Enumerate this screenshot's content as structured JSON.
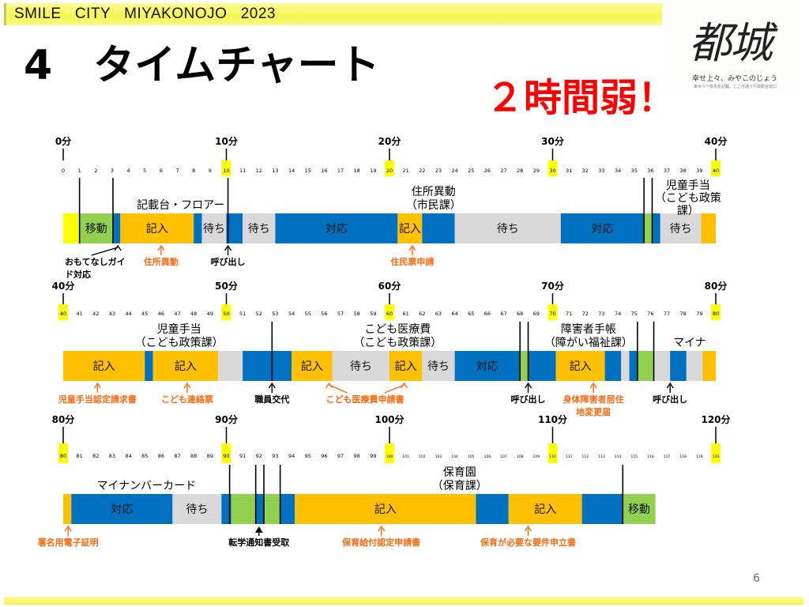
{
  "header": {
    "band_text": "SMILE   CITY   MIYAKONOJO   2023"
  },
  "title": "4　タイムチャート",
  "headline": "２時間弱！",
  "logo": {
    "kanji": "都城",
    "slogan": "幸せ上々、みやこのじょう",
    "sub": "幸せへ一歩先を記載。こころ通う行政総合窓口"
  },
  "page_number": "6",
  "colors": {
    "move": "#92d050",
    "write": "#ffc000",
    "wait": "#d9d9d9",
    "serve": "#0070c0",
    "guide": "#ffff00",
    "annotation_orange": "#ff6a13",
    "headline_red": "#ff0000",
    "tick_highlight": "#ffff00"
  },
  "chart_data": {
    "type": "timeline",
    "unit": "分",
    "rows": [
      {
        "range": [
          0,
          40
        ],
        "majors": [
          {
            "m": 0,
            "label": "0分"
          },
          {
            "m": 10,
            "label": "10分"
          },
          {
            "m": 20,
            "label": "20分"
          },
          {
            "m": 30,
            "label": "30分"
          },
          {
            "m": 40,
            "label": "40分"
          }
        ],
        "segments": [
          [
            0,
            1,
            "guide",
            ""
          ],
          [
            1,
            3.05,
            "move",
            "移動"
          ],
          [
            3.05,
            3.5,
            "serve",
            ""
          ],
          [
            3.5,
            8,
            "write",
            "記入"
          ],
          [
            8,
            8.5,
            "serve",
            ""
          ],
          [
            8.5,
            10,
            "wait",
            "待ち"
          ],
          [
            10,
            11,
            "serve",
            ""
          ],
          [
            11,
            13,
            "wait",
            "待ち"
          ],
          [
            13,
            20.5,
            "serve",
            "対応"
          ],
          [
            20.5,
            22,
            "write",
            "記入"
          ],
          [
            22,
            24,
            "serve",
            ""
          ],
          [
            24,
            30.5,
            "wait",
            "待ち"
          ],
          [
            30.5,
            35.6,
            "serve",
            "対応"
          ],
          [
            35.6,
            36.1,
            "move",
            ""
          ],
          [
            36.1,
            36.6,
            "serve",
            ""
          ],
          [
            36.6,
            39.1,
            "wait",
            "待ち"
          ],
          [
            39.1,
            40,
            "write",
            ""
          ]
        ],
        "markers": [
          1,
          3.05,
          10.1,
          35.6,
          36.1
        ],
        "phases": [
          {
            "m": 7.2,
            "lines": [
              "記載台・フロアー"
            ]
          },
          {
            "m": 22.7,
            "lines": [
              "住所異動",
              "（市民課）"
            ]
          },
          {
            "m": 38.3,
            "lines": [
              "児童手当",
              "（こども政策",
              "課）"
            ]
          }
        ],
        "annotations": [
          {
            "at": [
              3.35
            ],
            "label": [
              "おもてなしガイ",
              "ド対応"
            ],
            "color": "black",
            "label_at": 0.1,
            "anchor": "start"
          },
          {
            "at": [
              6
            ],
            "label": [
              "住所異動"
            ],
            "color": "orange"
          },
          {
            "at": [
              10.1
            ],
            "label": [
              "呼び出し"
            ],
            "color": "black"
          },
          {
            "at": [
              21.4
            ],
            "label": [
              "住民票申請"
            ],
            "color": "orange"
          }
        ]
      },
      {
        "range": [
          40,
          80
        ],
        "majors": [
          {
            "m": 40,
            "label": "40分"
          },
          {
            "m": 50,
            "label": "50分"
          },
          {
            "m": 60,
            "label": "60分"
          },
          {
            "m": 70,
            "label": "70分"
          },
          {
            "m": 80,
            "label": "80分"
          }
        ],
        "segments": [
          [
            40,
            45,
            "write",
            "記入"
          ],
          [
            45,
            45.5,
            "serve",
            ""
          ],
          [
            45.5,
            49.5,
            "write",
            "記入"
          ],
          [
            49.5,
            51,
            "wait",
            ""
          ],
          [
            51,
            54,
            "serve",
            ""
          ],
          [
            54,
            56.5,
            "write",
            "記入"
          ],
          [
            56.5,
            60,
            "wait",
            "待ち"
          ],
          [
            60,
            62,
            "write",
            "記入"
          ],
          [
            62,
            64,
            "wait",
            "待ち"
          ],
          [
            64,
            68,
            "serve",
            "対応"
          ],
          [
            68,
            68.5,
            "move",
            ""
          ],
          [
            68.5,
            70.2,
            "serve",
            ""
          ],
          [
            70.2,
            73.2,
            "write",
            "記入"
          ],
          [
            73.2,
            74.2,
            "serve",
            ""
          ],
          [
            74.2,
            74.7,
            "wait",
            ""
          ],
          [
            74.7,
            75.2,
            "serve",
            ""
          ],
          [
            75.2,
            76.2,
            "move",
            ""
          ],
          [
            76.2,
            77.2,
            "wait",
            ""
          ],
          [
            77.2,
            78.2,
            "serve",
            ""
          ],
          [
            78.2,
            79.2,
            "wait",
            ""
          ],
          [
            79.2,
            80,
            "write",
            ""
          ]
        ],
        "markers": [
          52.8,
          68,
          68.5,
          75.2,
          76.2
        ],
        "phases": [
          {
            "m": 47.1,
            "lines": [
              "児童手当",
              "（こども政策課）"
            ]
          },
          {
            "m": 60.5,
            "lines": [
              "こども医療費",
              "（こども政策課）"
            ]
          },
          {
            "m": 72.2,
            "lines": [
              "障害者手帳",
              "（障がい福祉課）"
            ]
          },
          {
            "m": 78.4,
            "lines": [
              "マイナ"
            ]
          }
        ],
        "annotations": [
          {
            "at": [
              42.1
            ],
            "label": [
              "児童手当認定請求書"
            ],
            "color": "orange"
          },
          {
            "at": [
              47.6
            ],
            "label": [
              "こども連絡票"
            ],
            "color": "orange"
          },
          {
            "at": [
              52.8
            ],
            "label": [
              "職員交代"
            ],
            "color": "black"
          },
          {
            "at": [
              56.3,
              60.9
            ],
            "label": [
              "こども医療費申請書"
            ],
            "color": "orange",
            "label_at": 58.5
          },
          {
            "at": [
              68.5
            ],
            "label": [
              "呼び出し"
            ],
            "color": "black"
          },
          {
            "at": [
              72.5
            ],
            "label": [
              "身体障害者居住",
              "地変更届"
            ],
            "color": "orange"
          },
          {
            "at": [
              77.2
            ],
            "label": [
              "呼び出し"
            ],
            "color": "black"
          }
        ]
      },
      {
        "range": [
          80,
          120
        ],
        "majors": [
          {
            "m": 80,
            "label": "80分"
          },
          {
            "m": 90,
            "label": "90分"
          },
          {
            "m": 100,
            "label": "100分"
          },
          {
            "m": 110,
            "label": "110分"
          },
          {
            "m": 120,
            "label": "120分"
          }
        ],
        "segments": [
          [
            80,
            80.5,
            "write",
            ""
          ],
          [
            80.5,
            86.7,
            "serve",
            "対応"
          ],
          [
            86.7,
            89.7,
            "wait",
            "待ち"
          ],
          [
            89.7,
            90.3,
            "serve",
            ""
          ],
          [
            90.3,
            91.8,
            "move",
            ""
          ],
          [
            91.8,
            92.3,
            "serve",
            ""
          ],
          [
            92.3,
            93.3,
            "move",
            ""
          ],
          [
            93.3,
            94.2,
            "serve",
            ""
          ],
          [
            94.2,
            105.3,
            "write",
            "記入"
          ],
          [
            105.3,
            107.3,
            "serve",
            ""
          ],
          [
            107.3,
            111.8,
            "write",
            "記入"
          ],
          [
            111.8,
            114.3,
            "serve",
            ""
          ],
          [
            114.3,
            116.3,
            "move",
            "移動"
          ]
        ],
        "markers": [
          90.2,
          91.8,
          92.3,
          93.3,
          114.3
        ],
        "phases": [
          {
            "m": 85.1,
            "lines": [
              "マイナンバーカード"
            ]
          },
          {
            "m": 104.3,
            "lines": [
              "保育園",
              "（保育課）"
            ]
          }
        ],
        "annotations": [
          {
            "at": [
              80.3
            ],
            "label": [
              "署名用電子証明"
            ],
            "color": "orange"
          },
          {
            "at": [
              92
            ],
            "label": [
              "転学通知書受取"
            ],
            "color": "black",
            "solid": true
          },
          {
            "at": [
              99.5
            ],
            "label": [
              "保育給付認定申請書"
            ],
            "color": "orange"
          },
          {
            "at": [
              108.5
            ],
            "label": [
              "保育が必要な要件申立書"
            ],
            "color": "orange"
          }
        ]
      }
    ]
  }
}
